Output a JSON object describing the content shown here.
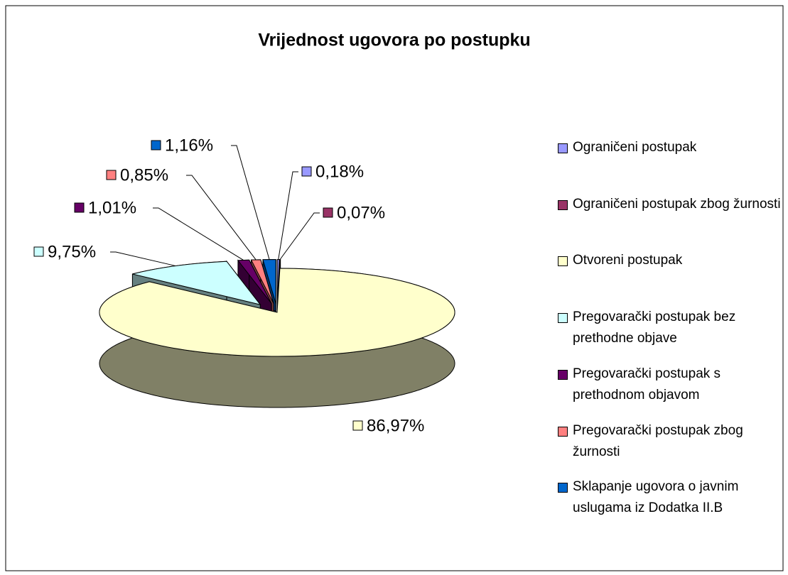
{
  "chart_data": {
    "type": "pie3d",
    "title": "Vrijednost ugovora po postupku",
    "categories": [
      "Ograničeni postupak",
      "Ograničeni postupak zbog žurnosti",
      "Otvoreni postupak",
      "Pregovarački postupak bez prethodne objave",
      "Pregovarački postupak s prethodnom objavom",
      "Pregovarački postupak zbog žurnosti",
      "Sklapanje ugovora o javnim uslugama iz Dodatka II.B"
    ],
    "values": [
      0.18,
      0.07,
      86.97,
      9.75,
      1.01,
      0.85,
      1.16
    ],
    "value_labels": [
      "0,18%",
      "0,07%",
      "86,97%",
      "9,75%",
      "1,01%",
      "0,85%",
      "1,16%"
    ],
    "colors": [
      "#9999ff",
      "#993366",
      "#ffffcc",
      "#ccffff",
      "#660066",
      "#ff8080",
      "#0066cc"
    ],
    "legend": "right"
  }
}
